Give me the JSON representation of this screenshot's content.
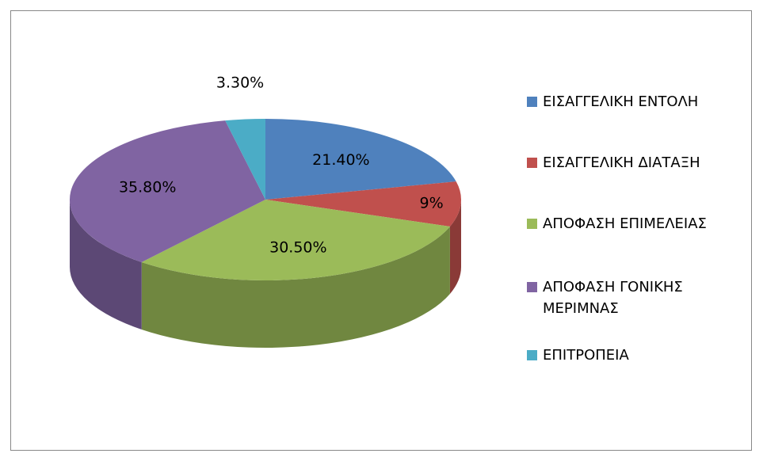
{
  "chart_data": {
    "type": "pie",
    "categories": [
      "ΕΙΣΑΓΓΕΛΙΚΗ ΕΝΤΟΛΗ",
      "ΕΙΣΑΓΓΕΛΙΚΗ ΔΙΑΤΑΞΗ",
      "ΑΠΟΦΑΣΗ ΕΠΙΜΕΛΕΙΑΣ",
      "ΑΠΟΦΑΣΗ ΓΟΝΙΚΗΣ ΜΕΡΙΜΝΑΣ",
      "ΕΠΙΤΡΟΠΕΙΑ"
    ],
    "values": [
      21.4,
      9,
      30.5,
      35.8,
      3.3
    ],
    "value_labels": [
      "21.40%",
      "9%",
      "30.50%",
      "35.80%",
      "3.30%"
    ],
    "colors": [
      "#4f81bd",
      "#c0504d",
      "#9bbb59",
      "#8064a2",
      "#4bacc6"
    ],
    "legend": "right"
  }
}
